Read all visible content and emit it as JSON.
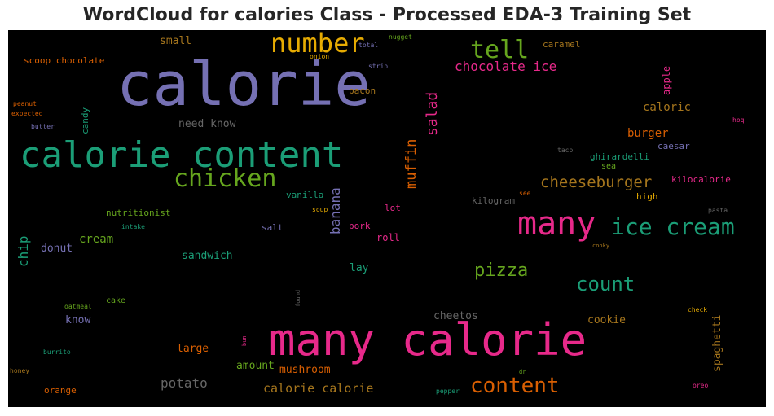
{
  "title": "WordCloud for calories Class - Processed EDA-3 Training Set",
  "palette": {
    "pink": "#e7298a",
    "purple": "#7570b3",
    "teal": "#1b9e77",
    "orange": "#d95f02",
    "green": "#66a61e",
    "gold": "#e6ab02",
    "brown": "#a6761d",
    "gray": "#666666"
  },
  "chart_data": {
    "type": "wordcloud",
    "background": "#000000",
    "words": [
      {
        "text": "calorie",
        "color": "purple",
        "weight": 100
      },
      {
        "text": "many calorie",
        "color": "pink",
        "weight": 72
      },
      {
        "text": "calorie content",
        "color": "teal",
        "weight": 62
      },
      {
        "text": "many",
        "color": "pink",
        "weight": 55
      },
      {
        "text": "number",
        "color": "gold",
        "weight": 42
      },
      {
        "text": "chicken",
        "color": "green",
        "weight": 40
      },
      {
        "text": "tell",
        "color": "green",
        "weight": 38
      },
      {
        "text": "ice cream",
        "color": "teal",
        "weight": 38
      },
      {
        "text": "content",
        "color": "orange",
        "weight": 34
      },
      {
        "text": "count",
        "color": "teal",
        "weight": 30
      },
      {
        "text": "pizza",
        "color": "green",
        "weight": 28
      },
      {
        "text": "cheeseburger",
        "color": "brown",
        "weight": 24
      },
      {
        "text": "salad",
        "color": "pink",
        "weight": 22
      },
      {
        "text": "muffin",
        "color": "orange",
        "weight": 22
      },
      {
        "text": "chocolate ice",
        "color": "pink",
        "weight": 20
      },
      {
        "text": "banana",
        "color": "purple",
        "weight": 20
      },
      {
        "text": "chip",
        "color": "teal",
        "weight": 20
      },
      {
        "text": "calorie calorie",
        "color": "brown",
        "weight": 19
      },
      {
        "text": "potato",
        "color": "gray",
        "weight": 19
      },
      {
        "text": "burger",
        "color": "orange",
        "weight": 16
      },
      {
        "text": "caloric",
        "color": "brown",
        "weight": 16
      },
      {
        "text": "cream",
        "color": "green",
        "weight": 16
      },
      {
        "text": "spaghetti",
        "color": "brown",
        "weight": 15
      },
      {
        "text": "cookie",
        "color": "brown",
        "weight": 15
      },
      {
        "text": "cheetos",
        "color": "gray",
        "weight": 15
      },
      {
        "text": "need know",
        "color": "gray",
        "weight": 15
      },
      {
        "text": "mushroom",
        "color": "orange",
        "weight": 15
      },
      {
        "text": "large",
        "color": "orange",
        "weight": 15
      },
      {
        "text": "amount",
        "color": "green",
        "weight": 14
      },
      {
        "text": "sandwich",
        "color": "teal",
        "weight": 14
      },
      {
        "text": "donut",
        "color": "purple",
        "weight": 14
      },
      {
        "text": "know",
        "color": "purple",
        "weight": 14
      },
      {
        "text": "small",
        "color": "brown",
        "weight": 14
      },
      {
        "text": "apple",
        "color": "pink",
        "weight": 14
      },
      {
        "text": "lay",
        "color": "teal",
        "weight": 14
      },
      {
        "text": "roll",
        "color": "pink",
        "weight": 13
      },
      {
        "text": "scoop chocolate",
        "color": "orange",
        "weight": 12
      },
      {
        "text": "caramel",
        "color": "brown",
        "weight": 12
      },
      {
        "text": "ghirardelli",
        "color": "teal",
        "weight": 12
      },
      {
        "text": "kilocalorie",
        "color": "pink",
        "weight": 12
      },
      {
        "text": "caesar",
        "color": "purple",
        "weight": 12
      },
      {
        "text": "vanilla",
        "color": "teal",
        "weight": 12
      },
      {
        "text": "nutritionist",
        "color": "green",
        "weight": 12
      },
      {
        "text": "salt",
        "color": "purple",
        "weight": 12
      },
      {
        "text": "pork",
        "color": "pink",
        "weight": 12
      },
      {
        "text": "lot",
        "color": "pink",
        "weight": 12
      },
      {
        "text": "high",
        "color": "gold",
        "weight": 12
      },
      {
        "text": "kilogram",
        "color": "gray",
        "weight": 12
      },
      {
        "text": "bacon",
        "color": "brown",
        "weight": 12
      },
      {
        "text": "candy",
        "color": "teal",
        "weight": 12
      },
      {
        "text": "orange",
        "color": "orange",
        "weight": 12
      },
      {
        "text": "cake",
        "color": "green",
        "weight": 11
      },
      {
        "text": "sea",
        "color": "green",
        "weight": 11
      },
      {
        "text": "nugget",
        "color": "green",
        "weight": 9
      },
      {
        "text": "total",
        "color": "purple",
        "weight": 9
      },
      {
        "text": "onion",
        "color": "gold",
        "weight": 9
      },
      {
        "text": "strip",
        "color": "purple",
        "weight": 9
      },
      {
        "text": "peanut",
        "color": "orange",
        "weight": 9
      },
      {
        "text": "expected",
        "color": "orange",
        "weight": 9
      },
      {
        "text": "butter",
        "color": "purple",
        "weight": 9
      },
      {
        "text": "hoq",
        "color": "pink",
        "weight": 9
      },
      {
        "text": "taco",
        "color": "gray",
        "weight": 9
      },
      {
        "text": "see",
        "color": "orange",
        "weight": 9
      },
      {
        "text": "intake",
        "color": "teal",
        "weight": 9
      },
      {
        "text": "soup",
        "color": "gold",
        "weight": 9
      },
      {
        "text": "pasta",
        "color": "gray",
        "weight": 9
      },
      {
        "text": "cooky",
        "color": "brown",
        "weight": 8
      },
      {
        "text": "found",
        "color": "gray",
        "weight": 8
      },
      {
        "text": "oatmeal",
        "color": "green",
        "weight": 9
      },
      {
        "text": "check",
        "color": "gold",
        "weight": 9
      },
      {
        "text": "bun",
        "color": "pink",
        "weight": 8
      },
      {
        "text": "burrito",
        "color": "teal",
        "weight": 9
      },
      {
        "text": "honey",
        "color": "brown",
        "weight": 9
      },
      {
        "text": "dr",
        "color": "green",
        "weight": 8
      },
      {
        "text": "pepper",
        "color": "teal",
        "weight": 9
      },
      {
        "text": "oreo",
        "color": "pink",
        "weight": 9
      }
    ]
  }
}
